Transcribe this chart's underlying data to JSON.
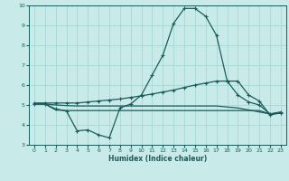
{
  "xlabel": "Humidex (Indice chaleur)",
  "xlim": [
    -0.5,
    23.5
  ],
  "ylim": [
    3,
    10
  ],
  "yticks": [
    3,
    4,
    5,
    6,
    7,
    8,
    9,
    10
  ],
  "xticks": [
    0,
    1,
    2,
    3,
    4,
    5,
    6,
    7,
    8,
    9,
    10,
    11,
    12,
    13,
    14,
    15,
    16,
    17,
    18,
    19,
    20,
    21,
    22,
    23
  ],
  "background_color": "#c8eae8",
  "grid_color": "#a8d8d4",
  "line_color": "#1a5c5c",
  "curves": {
    "main_peak": {
      "x": [
        0,
        1,
        2,
        3,
        4,
        5,
        6,
        7,
        8,
        9,
        10,
        11,
        12,
        13,
        14,
        15,
        16,
        17,
        18,
        19,
        20,
        21,
        22,
        23
      ],
      "y": [
        5.05,
        5.05,
        4.8,
        4.7,
        3.7,
        3.75,
        3.5,
        3.35,
        4.85,
        5.05,
        5.5,
        6.5,
        7.5,
        9.1,
        9.85,
        9.85,
        9.45,
        8.5,
        6.2,
        6.2,
        5.5,
        5.2,
        4.5,
        4.6
      ],
      "marker": true
    },
    "upper_envelope": {
      "x": [
        0,
        1,
        2,
        3,
        4,
        5,
        6,
        7,
        8,
        9,
        10,
        11,
        12,
        13,
        14,
        15,
        16,
        17,
        18,
        19,
        20,
        21,
        22,
        23
      ],
      "y": [
        5.1,
        5.1,
        5.1,
        5.1,
        5.1,
        5.15,
        5.2,
        5.25,
        5.3,
        5.38,
        5.46,
        5.55,
        5.65,
        5.75,
        5.88,
        6.0,
        6.1,
        6.2,
        6.2,
        5.5,
        5.15,
        5.0,
        4.55,
        4.65
      ],
      "marker": true
    },
    "middle_line": {
      "x": [
        0,
        1,
        2,
        3,
        4,
        5,
        6,
        7,
        8,
        9,
        10,
        11,
        12,
        13,
        14,
        15,
        16,
        17,
        18,
        19,
        20,
        21,
        22,
        23
      ],
      "y": [
        5.05,
        5.05,
        5.0,
        4.97,
        4.95,
        4.95,
        4.95,
        4.95,
        4.95,
        4.95,
        4.95,
        4.95,
        4.95,
        4.95,
        4.95,
        4.95,
        4.95,
        4.95,
        4.9,
        4.85,
        4.75,
        4.65,
        4.55,
        4.6
      ],
      "marker": false
    },
    "flat_line": {
      "x": [
        0,
        1,
        2,
        3,
        4,
        5,
        6,
        7,
        8,
        9,
        10,
        11,
        12,
        13,
        14,
        15,
        16,
        17,
        18,
        19,
        20,
        21,
        22,
        23
      ],
      "y": [
        5.05,
        5.05,
        4.75,
        4.72,
        4.72,
        4.72,
        4.72,
        4.72,
        4.72,
        4.72,
        4.72,
        4.72,
        4.72,
        4.72,
        4.72,
        4.72,
        4.72,
        4.72,
        4.72,
        4.72,
        4.72,
        4.72,
        4.55,
        4.6
      ],
      "marker": false
    }
  }
}
